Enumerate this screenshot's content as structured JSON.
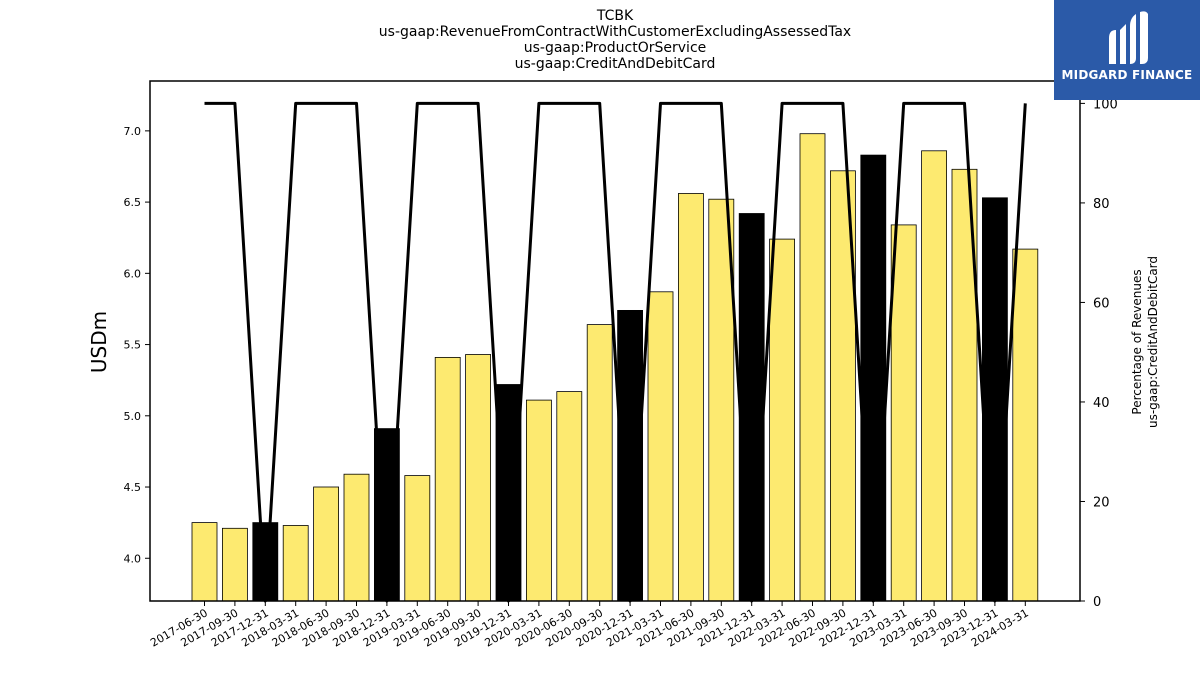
{
  "brand": {
    "name": "MIDGARD FINANCE",
    "background": "#2b5aa8"
  },
  "chart_data": {
    "type": "bar",
    "title_lines": [
      "TCBK",
      "us-gaap:RevenueFromContractWithCustomerExcludingAssessedTax",
      "us-gaap:ProductOrService",
      "us-gaap:CreditAndDebitCard"
    ],
    "ylabel": "USDm",
    "y2label_lines": [
      "Percentage of Revenues",
      "us-gaap:CreditAndDebitCard"
    ],
    "categories": [
      "2017-06-30",
      "2017-09-30",
      "2017-12-31",
      "2018-03-31",
      "2018-06-30",
      "2018-09-30",
      "2018-12-31",
      "2019-03-31",
      "2019-06-30",
      "2019-09-30",
      "2019-12-31",
      "2020-03-31",
      "2020-06-30",
      "2020-09-30",
      "2020-12-31",
      "2021-03-31",
      "2021-06-30",
      "2021-09-30",
      "2021-12-31",
      "2022-03-31",
      "2022-06-30",
      "2022-09-30",
      "2022-12-31",
      "2023-03-31",
      "2023-06-30",
      "2023-09-30",
      "2023-12-31",
      "2024-03-31"
    ],
    "values": [
      4.25,
      4.21,
      4.25,
      4.23,
      4.5,
      4.59,
      4.91,
      4.58,
      5.41,
      5.43,
      5.22,
      5.11,
      5.17,
      5.64,
      5.74,
      5.87,
      6.56,
      6.52,
      6.42,
      6.24,
      6.98,
      6.72,
      6.83,
      6.34,
      6.86,
      6.73,
      6.53,
      6.17
    ],
    "bar_colors": [
      "#fdea70",
      "#fdea70",
      "#000000",
      "#fdea70",
      "#fdea70",
      "#fdea70",
      "#000000",
      "#fdea70",
      "#fdea70",
      "#fdea70",
      "#000000",
      "#fdea70",
      "#fdea70",
      "#fdea70",
      "#000000",
      "#fdea70",
      "#fdea70",
      "#fdea70",
      "#000000",
      "#fdea70",
      "#fdea70",
      "#fdea70",
      "#000000",
      "#fdea70",
      "#fdea70",
      "#fdea70",
      "#000000",
      "#fdea70"
    ],
    "line_values": [
      100,
      100,
      0,
      100,
      100,
      100,
      0,
      100,
      100,
      100,
      0,
      100,
      100,
      100,
      0,
      100,
      100,
      100,
      0,
      100,
      100,
      100,
      0,
      100,
      100,
      100,
      0,
      100
    ],
    "ylim": [
      3.7,
      7.35
    ],
    "y_ticks": [
      "4.0",
      "4.5",
      "5.0",
      "5.5",
      "6.0",
      "6.5",
      "7.0"
    ],
    "y2lim": [
      0,
      104.5
    ],
    "y2_ticks": [
      "0",
      "20",
      "40",
      "60",
      "80",
      "100"
    ],
    "grid": false,
    "legend": "none"
  }
}
